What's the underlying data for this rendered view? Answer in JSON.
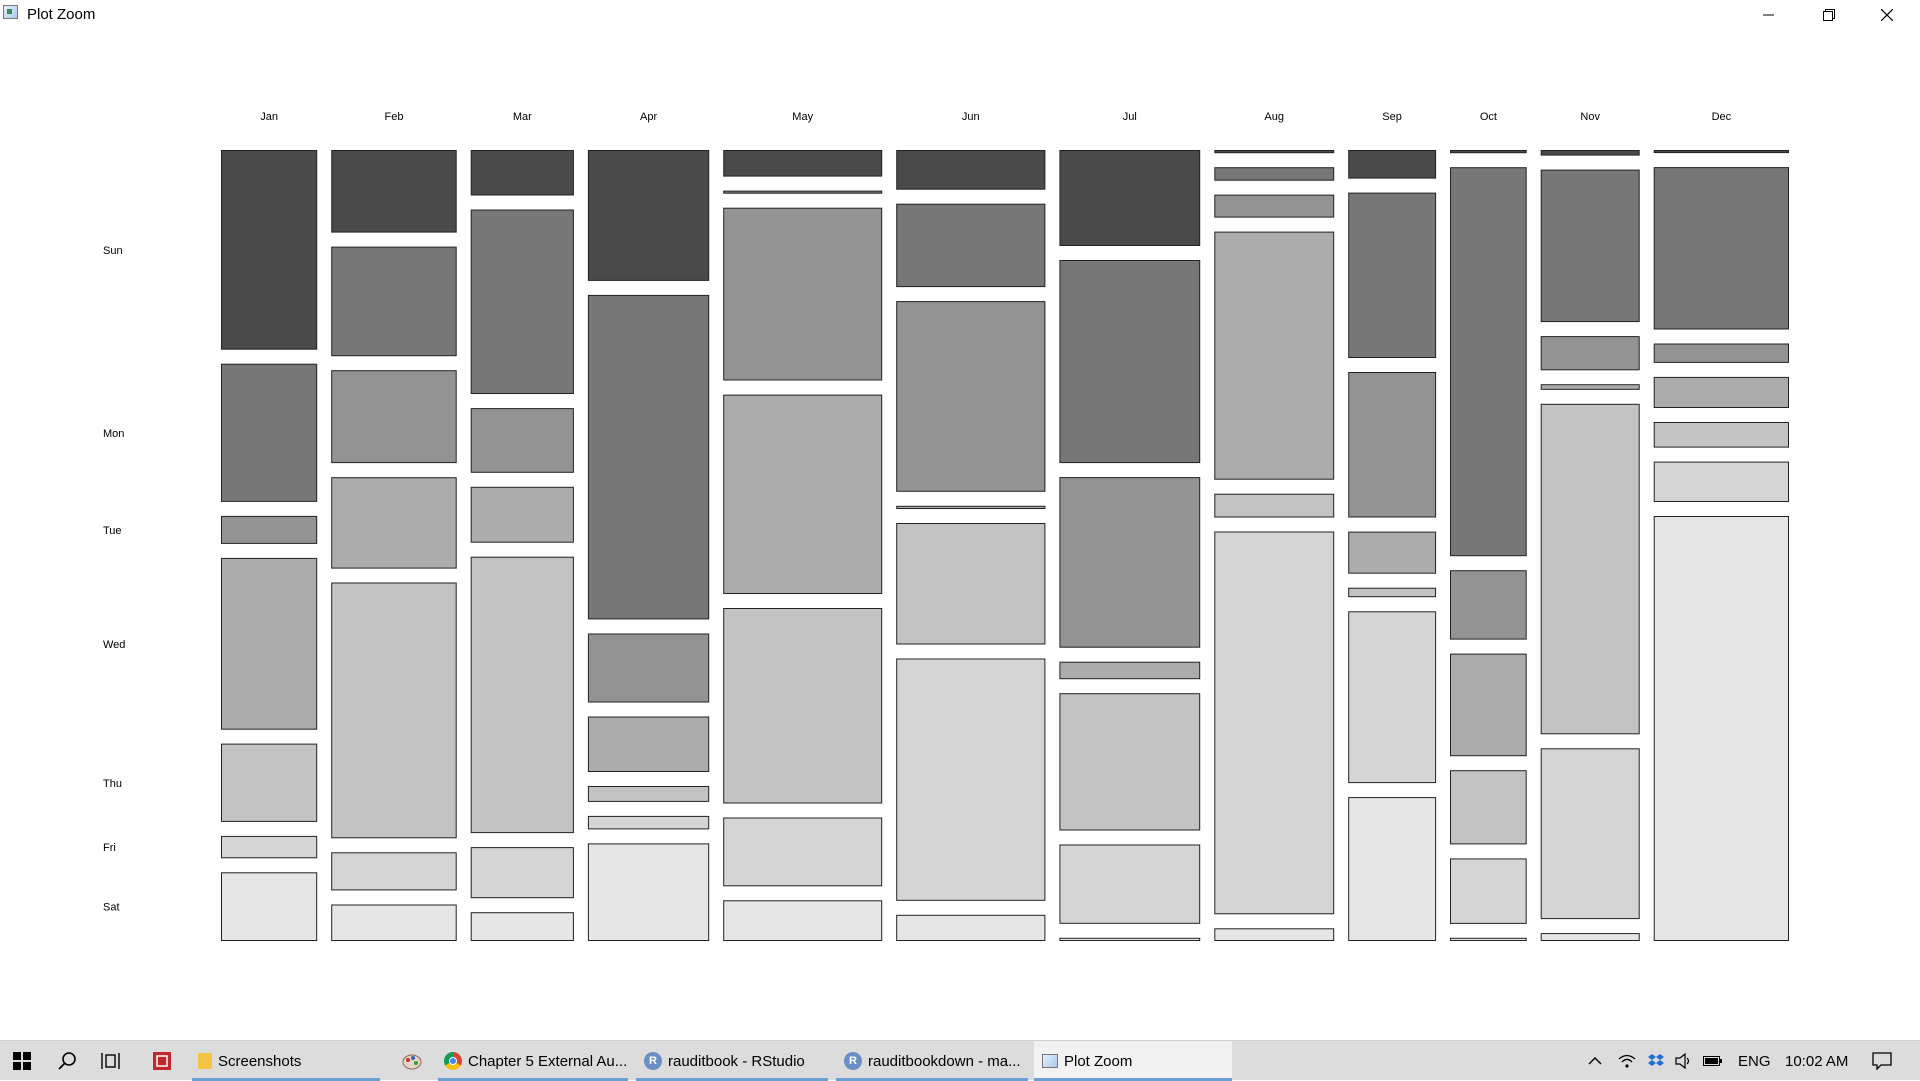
{
  "window": {
    "title": "Plot Zoom",
    "icon": "app-plot-icon",
    "controls": [
      "minimize-icon",
      "maximize-icon",
      "close-icon"
    ]
  },
  "chart_data": {
    "type": "mosaic",
    "months": [
      "Jan",
      "Feb",
      "Mar",
      "Apr",
      "May",
      "Jun",
      "Jul",
      "Aug",
      "Sep",
      "Oct",
      "Nov",
      "Dec"
    ],
    "month_shares": [
      0.069,
      0.09,
      0.074,
      0.087,
      0.114,
      0.107,
      0.101,
      0.086,
      0.063,
      0.055,
      0.071,
      0.097
    ],
    "weekdays": [
      "Sun",
      "Mon",
      "Tue",
      "Wed",
      "Thu",
      "Fri",
      "Sat"
    ],
    "weekday_fills": [
      "#4a4a4a",
      "#777777",
      "#939393",
      "#acacac",
      "#c3c3c3",
      "#d5d5d5",
      "#e6e6e6"
    ],
    "proportions": [
      [
        0.25,
        0.173,
        0.035,
        0.215,
        0.098,
        0.028,
        0.086
      ],
      [
        0.104,
        0.138,
        0.117,
        0.115,
        0.322,
        0.048,
        0.046
      ],
      [
        0.057,
        0.231,
        0.081,
        0.07,
        0.346,
        0.064,
        0.036
      ],
      [
        0.165,
        0.409,
        0.087,
        0.07,
        0.02,
        0.017,
        0.123
      ],
      [
        0.034,
        0.004,
        0.221,
        0.255,
        0.25,
        0.088,
        0.052
      ],
      [
        0.05,
        0.105,
        0.24,
        0.004,
        0.153,
        0.305,
        0.033
      ],
      [
        0.121,
        0.256,
        0.215,
        0.022,
        0.173,
        0.1,
        0.004
      ],
      [
        0.004,
        0.017,
        0.029,
        0.313,
        0.03,
        0.483,
        0.016
      ],
      [
        0.036,
        0.208,
        0.183,
        0.053,
        0.012,
        0.216,
        0.181
      ],
      [
        0.004,
        0.493,
        0.088,
        0.13,
        0.094,
        0.083,
        0.004
      ],
      [
        0.007,
        0.192,
        0.043,
        0.007,
        0.416,
        0.215,
        0.01
      ],
      [
        0.004,
        0.209,
        0.025,
        0.04,
        0.033,
        0.052,
        0.547
      ]
    ],
    "title": "",
    "xlabel": "",
    "ylabel": "",
    "grid": false,
    "legend": "none",
    "border_color": "#222222",
    "background": "#ffffff"
  },
  "taskbar": {
    "start_icon": "windows-start-icon",
    "search_icon": "search-icon",
    "task_view_icon": "task-view-icon",
    "pinned_icon": "red-app-icon",
    "apps": [
      {
        "label": "Screenshots",
        "icon": "folder-icon",
        "active": false
      },
      {
        "label": "",
        "icon": "paint-icon",
        "active": false
      },
      {
        "label": "Chapter 5 External Au...",
        "icon": "chrome-icon",
        "active": false
      },
      {
        "label": "rauditbook - RStudio",
        "icon": "rstudio-icon",
        "active": false
      },
      {
        "label": "rauditbookdown - ma...",
        "icon": "rstudio-icon",
        "active": false
      },
      {
        "label": "Plot Zoom",
        "icon": "plot-icon",
        "active": true
      }
    ],
    "tray": {
      "chevron_icon": "chevron-up-icon",
      "network_icon": "wifi-icon",
      "dropbox_icon": "dropbox-icon",
      "volume_icon": "volume-icon",
      "battery_icon": "battery-icon",
      "language": "ENG",
      "time": "10:02 AM",
      "notifications_icon": "notification-icon"
    },
    "accent": "#6a9fd0"
  }
}
